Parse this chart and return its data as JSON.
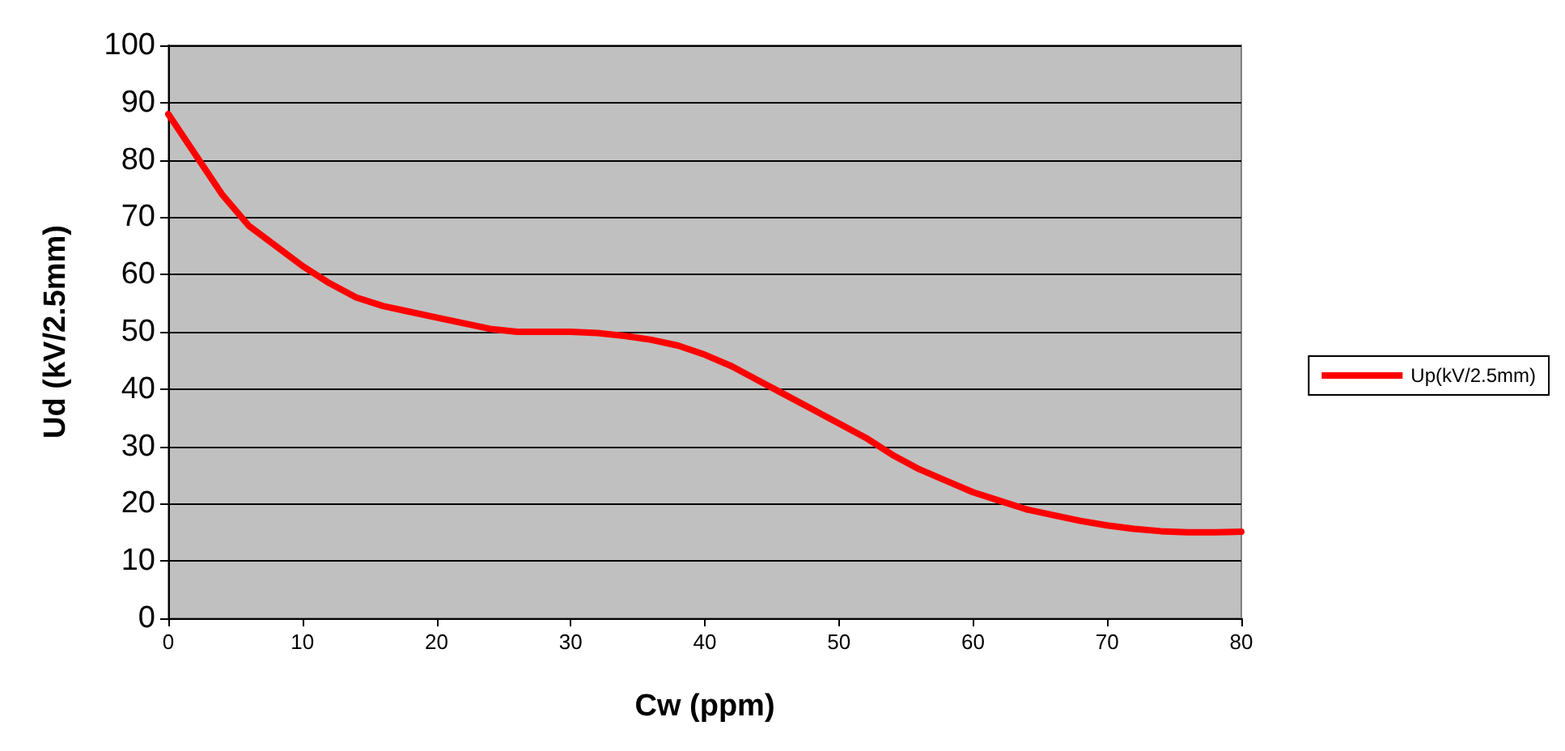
{
  "chart_data": {
    "type": "line",
    "xlabel": "Cw (ppm)",
    "ylabel": "Ud (kV/2.5mm)",
    "x": [
      0,
      2,
      4,
      6,
      8,
      10,
      12,
      14,
      16,
      18,
      20,
      22,
      24,
      26,
      28,
      30,
      32,
      34,
      36,
      38,
      40,
      42,
      44,
      46,
      48,
      50,
      52,
      54,
      56,
      58,
      60,
      62,
      64,
      66,
      68,
      70,
      72,
      74,
      76,
      78,
      80
    ],
    "series": [
      {
        "name": "Up(kV/2.5mm)",
        "color": "#ff0000",
        "values": [
          88,
          81,
          74,
          68.5,
          65,
          61.5,
          58.5,
          56,
          54.5,
          53.5,
          52.5,
          51.5,
          50.5,
          50,
          50,
          50,
          49.8,
          49.3,
          48.6,
          47.6,
          46,
          44,
          41.5,
          39,
          36.5,
          34,
          31.5,
          28.5,
          26,
          24,
          22,
          20.5,
          19,
          18,
          17,
          16.2,
          15.6,
          15.2,
          15,
          15,
          15.1
        ]
      }
    ],
    "xlim": [
      0,
      80
    ],
    "xticks": [
      0,
      10,
      20,
      30,
      40,
      50,
      60,
      70,
      80
    ],
    "ylim": [
      0,
      100
    ],
    "yticks": [
      0,
      10,
      20,
      30,
      40,
      50,
      60,
      70,
      80,
      90,
      100
    ],
    "grid": "y",
    "legend": "right",
    "marker": "none",
    "line_style": "solid"
  }
}
